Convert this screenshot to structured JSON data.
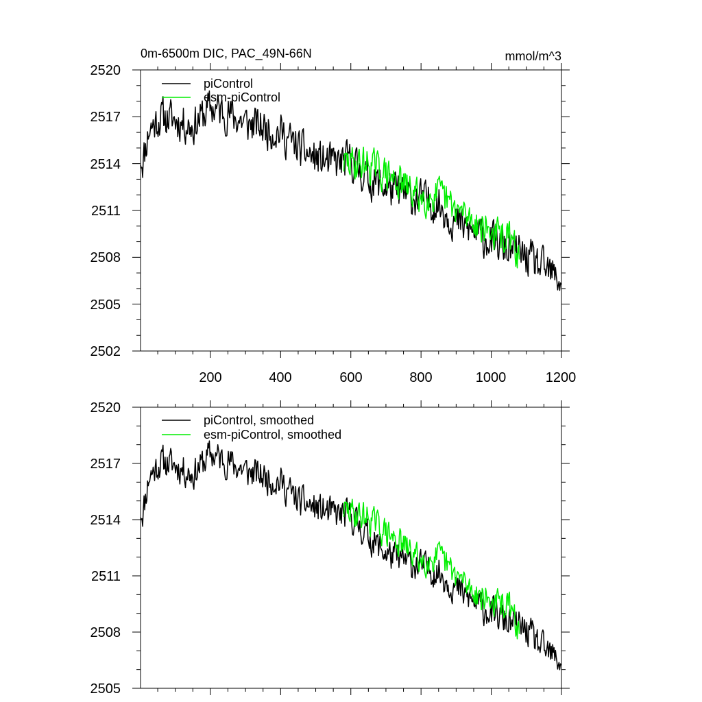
{
  "chart_data": [
    {
      "type": "line",
      "title": "0m-6500m DIC, PAC_49N-66N",
      "units": "mmol/m^3",
      "xlabel": "",
      "ylabel": "",
      "xlim": [
        1,
        1200
      ],
      "ylim": [
        2502,
        2520
      ],
      "xticks": [
        200,
        400,
        600,
        800,
        1000,
        1200
      ],
      "xtick_labels": [
        "200",
        "400",
        "600",
        "800",
        "1000",
        "1200"
      ],
      "yticks": [
        2502,
        2505,
        2508,
        2511,
        2514,
        2517,
        2520
      ],
      "ytick_labels": [
        "2502",
        "2505",
        "2508",
        "2511",
        "2514",
        "2517",
        "2520"
      ],
      "legend_position": "top-left",
      "series": [
        {
          "name": "piControl",
          "color": "#000000",
          "x_start": 1,
          "x_end": 1200,
          "noise_amp": 1.1,
          "seed": 11,
          "anchors_x": [
            1,
            8,
            25,
            60,
            100,
            150,
            200,
            250,
            300,
            350,
            400,
            450,
            500,
            550,
            600,
            650,
            700,
            750,
            800,
            850,
            900,
            950,
            1000,
            1050,
            1100,
            1150,
            1200
          ],
          "anchors_y": [
            2514.5,
            2514.2,
            2516.2,
            2517.0,
            2516.8,
            2516.4,
            2517.6,
            2517.2,
            2516.6,
            2516.3,
            2516.0,
            2515.0,
            2514.3,
            2514.0,
            2514.2,
            2513.0,
            2512.5,
            2512.0,
            2511.7,
            2511.4,
            2510.2,
            2509.6,
            2509.0,
            2508.5,
            2508.0,
            2507.2,
            2506.5
          ]
        },
        {
          "name": "esm-piControl",
          "color": "#00ee00",
          "x_start": 580,
          "x_end": 1080,
          "noise_amp": 1.0,
          "seed": 29,
          "anchors_x": [
            580,
            650,
            700,
            750,
            800,
            850,
            900,
            950,
            1000,
            1050,
            1080
          ],
          "anchors_y": [
            2514.0,
            2514.0,
            2513.3,
            2512.6,
            2511.8,
            2512.0,
            2511.0,
            2510.4,
            2509.6,
            2509.2,
            2508.0
          ]
        }
      ]
    },
    {
      "type": "line",
      "title": "",
      "xlabel": "",
      "ylabel": "",
      "xlim": [
        1,
        1200
      ],
      "ylim": [
        2505,
        2520
      ],
      "xticks": [
        200,
        400,
        600,
        800,
        1000,
        1200
      ],
      "yticks": [
        2505,
        2508,
        2511,
        2514,
        2517,
        2520
      ],
      "ytick_labels": [
        "2505",
        "2508",
        "2511",
        "2514",
        "2517",
        "2520"
      ],
      "legend_position": "top-left",
      "series": [
        {
          "name": "piControl, smoothed",
          "color": "#000000",
          "x_start": 1,
          "x_end": 1200,
          "noise_amp": 0.75,
          "seed": 11,
          "anchors_x": [
            1,
            8,
            25,
            60,
            100,
            150,
            200,
            250,
            300,
            350,
            400,
            450,
            500,
            550,
            600,
            650,
            700,
            750,
            800,
            850,
            900,
            950,
            1000,
            1050,
            1100,
            1150,
            1200
          ],
          "anchors_y": [
            2514.5,
            2514.4,
            2516.3,
            2517.1,
            2516.9,
            2516.4,
            2517.5,
            2517.1,
            2516.6,
            2516.3,
            2516.0,
            2515.0,
            2514.6,
            2514.3,
            2514.2,
            2513.1,
            2512.2,
            2511.8,
            2511.5,
            2511.2,
            2510.3,
            2509.6,
            2509.0,
            2508.5,
            2508.1,
            2507.0,
            2506.4
          ]
        },
        {
          "name": "esm-piControl, smoothed",
          "color": "#00ee00",
          "x_start": 580,
          "x_end": 1080,
          "noise_amp": 0.7,
          "seed": 29,
          "anchors_x": [
            580,
            650,
            700,
            750,
            800,
            850,
            900,
            950,
            1000,
            1050,
            1080
          ],
          "anchors_y": [
            2514.5,
            2514.1,
            2513.3,
            2512.6,
            2511.8,
            2512.0,
            2511.0,
            2510.2,
            2509.6,
            2509.4,
            2508.0
          ]
        }
      ]
    }
  ]
}
